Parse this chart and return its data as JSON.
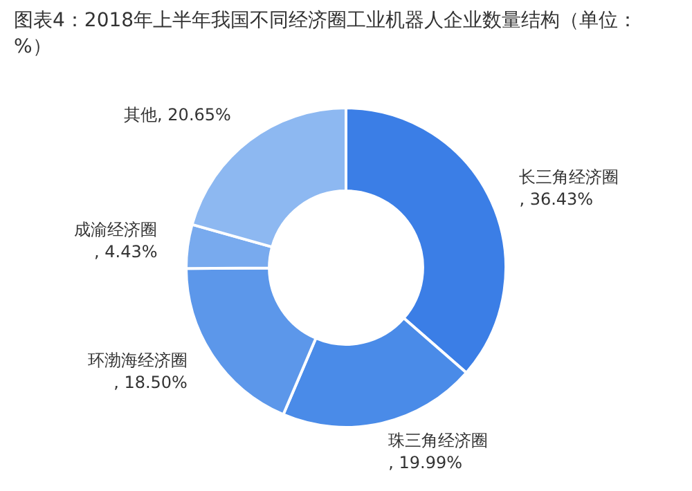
{
  "chart_data": {
    "type": "donut",
    "title": "图表4：2018年上半年我国不同经济圈工业机器人企业数量结构（单位：%）",
    "categories": [
      "长三角经济圈",
      "珠三角经济圈",
      "环渤海经济圈",
      "成渝经济圈",
      "其他"
    ],
    "values": [
      36.43,
      19.99,
      18.5,
      4.43,
      20.65
    ],
    "value_labels": [
      ", 36.43%",
      ", 19.99%",
      ", 18.50%",
      ", 4.43%",
      ", 20.65%"
    ],
    "colors": [
      "#3b7ee6",
      "#4a8be8",
      "#5c97ea",
      "#78aaee",
      "#8db8f1"
    ],
    "legend": false
  }
}
